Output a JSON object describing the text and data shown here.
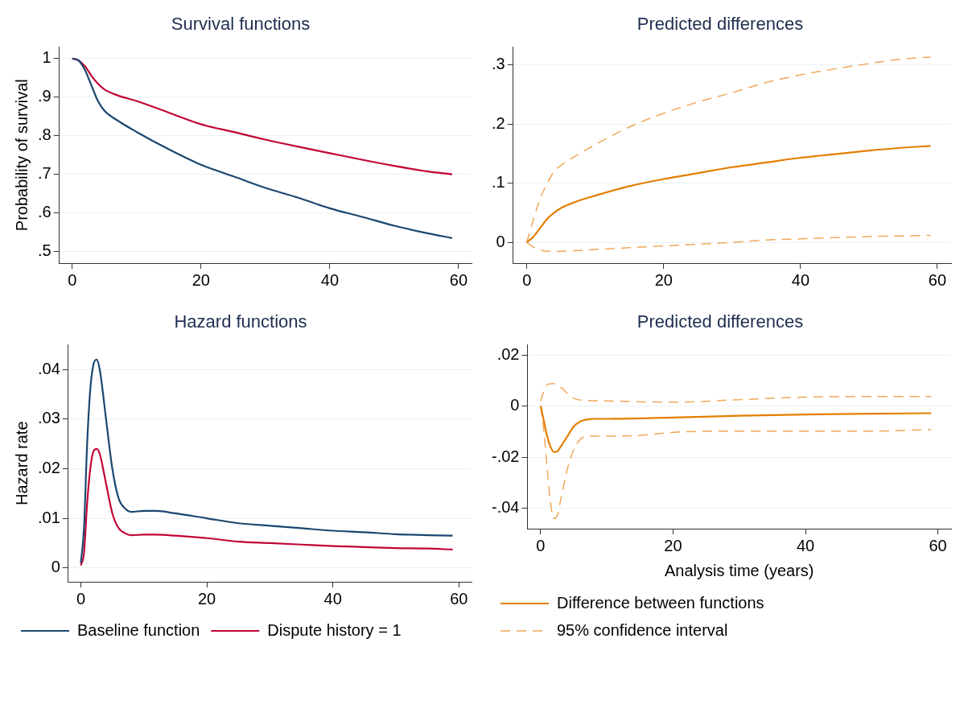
{
  "chart_data": [
    {
      "type": "line",
      "title": "Survival functions",
      "ylabel": "Probability of survival",
      "xlim": [
        -2,
        62
      ],
      "xticks": [
        0,
        20,
        40,
        60
      ],
      "ylim": [
        0.47,
        1.03
      ],
      "yticks": [
        {
          "value": 0.5,
          "label": ".5"
        },
        {
          "value": 0.6,
          "label": ".6"
        },
        {
          "value": 0.7,
          "label": ".7"
        },
        {
          "value": 0.8,
          "label": ".8"
        },
        {
          "value": 0.9,
          "label": ".9"
        },
        {
          "value": 1,
          "label": "1"
        }
      ],
      "grid": "y",
      "legend": false,
      "marker": "none",
      "series": [
        {
          "color": "#1a476f",
          "x": [
            0,
            1,
            2,
            3,
            4,
            5,
            7,
            10,
            15,
            20,
            25,
            30,
            35,
            40,
            45,
            50,
            55,
            59
          ],
          "values": [
            1,
            0.995,
            0.97,
            0.93,
            0.89,
            0.865,
            0.84,
            0.81,
            0.765,
            0.725,
            0.695,
            0.665,
            0.64,
            0.612,
            0.59,
            0.567,
            0.548,
            0.535
          ]
        },
        {
          "color": "#c10534",
          "x": [
            0,
            1,
            2,
            3,
            4,
            5,
            7,
            10,
            15,
            20,
            25,
            30,
            35,
            40,
            45,
            50,
            55,
            59
          ],
          "values": [
            1,
            0.995,
            0.98,
            0.955,
            0.935,
            0.92,
            0.905,
            0.89,
            0.86,
            0.83,
            0.81,
            0.79,
            0.772,
            0.755,
            0.738,
            0.722,
            0.708,
            0.7
          ]
        }
      ]
    },
    {
      "type": "line",
      "title": "Predicted differences",
      "xlim": [
        -2,
        62
      ],
      "xticks": [
        0,
        20,
        40,
        60
      ],
      "ylim": [
        -0.035,
        0.33
      ],
      "yticks": [
        {
          "value": 0,
          "label": "0"
        },
        {
          "value": 0.1,
          "label": ".1"
        },
        {
          "value": 0.2,
          "label": ".2"
        },
        {
          "value": 0.3,
          "label": ".3"
        }
      ],
      "grid": "y",
      "legend": false,
      "marker": "none",
      "series": [
        {
          "color": "#e37e00",
          "line_style": "solid",
          "x": [
            0,
            1,
            2,
            3,
            4,
            5,
            7,
            10,
            15,
            20,
            25,
            30,
            35,
            40,
            45,
            50,
            55,
            59
          ],
          "values": [
            0,
            0.01,
            0.025,
            0.04,
            0.05,
            0.058,
            0.068,
            0.079,
            0.095,
            0.107,
            0.117,
            0.127,
            0.135,
            0.143,
            0.149,
            0.155,
            0.16,
            0.163
          ]
        },
        {
          "color": "#f0a85a",
          "line_style": "dashed",
          "x": [
            0,
            1,
            2,
            3,
            4,
            5,
            7,
            10,
            15,
            20,
            25,
            30,
            35,
            40,
            45,
            50,
            55,
            59
          ],
          "values": [
            0,
            0.04,
            0.075,
            0.1,
            0.12,
            0.13,
            0.145,
            0.165,
            0.195,
            0.218,
            0.237,
            0.253,
            0.27,
            0.283,
            0.293,
            0.302,
            0.31,
            0.313
          ]
        },
        {
          "color": "#f0a85a",
          "line_style": "dashed",
          "x": [
            0,
            1,
            2,
            3,
            5,
            7,
            10,
            15,
            20,
            25,
            30,
            35,
            40,
            45,
            50,
            55,
            59
          ],
          "values": [
            0,
            -0.008,
            -0.013,
            -0.015,
            -0.015,
            -0.014,
            -0.012,
            -0.009,
            -0.006,
            -0.003,
            0,
            0.004,
            0.006,
            0.008,
            0.01,
            0.011,
            0.012
          ]
        }
      ]
    },
    {
      "type": "line",
      "title": "Hazard functions",
      "ylabel": "Hazard rate",
      "xlim": [
        -2,
        62
      ],
      "xticks": [
        0,
        20,
        40,
        60
      ],
      "ylim": [
        -0.0028,
        0.045
      ],
      "yticks": [
        {
          "value": 0,
          "label": "0"
        },
        {
          "value": 0.01,
          "label": ".01"
        },
        {
          "value": 0.02,
          "label": ".02"
        },
        {
          "value": 0.03,
          "label": ".03"
        },
        {
          "value": 0.04,
          "label": ".04"
        }
      ],
      "grid": "y",
      "legend": "bottom",
      "marker": "none",
      "series": [
        {
          "name": "Baseline function",
          "color": "#1a476f",
          "x": [
            0,
            0.5,
            1,
            1.5,
            2,
            2.5,
            3,
            4,
            5,
            6,
            7,
            8,
            10,
            12,
            15,
            20,
            25,
            30,
            35,
            40,
            45,
            50,
            55,
            59
          ],
          "values": [
            0.001,
            0.008,
            0.025,
            0.036,
            0.041,
            0.042,
            0.04,
            0.03,
            0.02,
            0.014,
            0.012,
            0.0113,
            0.0115,
            0.0115,
            0.011,
            0.01,
            0.009,
            0.0085,
            0.008,
            0.0075,
            0.0072,
            0.0068,
            0.0066,
            0.0065
          ]
        },
        {
          "name": "Dispute history = 1",
          "color": "#c10534",
          "x": [
            0,
            0.5,
            1,
            1.5,
            2,
            2.5,
            3,
            4,
            5,
            6,
            7,
            8,
            10,
            12,
            15,
            20,
            25,
            30,
            35,
            40,
            45,
            50,
            55,
            59
          ],
          "values": [
            0.0005,
            0.003,
            0.013,
            0.02,
            0.0235,
            0.024,
            0.023,
            0.017,
            0.011,
            0.008,
            0.007,
            0.0066,
            0.0067,
            0.0067,
            0.0065,
            0.006,
            0.0053,
            0.005,
            0.0047,
            0.0044,
            0.0042,
            0.004,
            0.0039,
            0.0037
          ]
        }
      ]
    },
    {
      "type": "line",
      "title": "Predicted differences",
      "xlabel": "Analysis time (years)",
      "xlim": [
        -2,
        62
      ],
      "xticks": [
        0,
        20,
        40,
        60
      ],
      "ylim": [
        -0.048,
        0.024
      ],
      "yticks": [
        {
          "value": -0.04,
          "label": "-.04"
        },
        {
          "value": -0.02,
          "label": "-.02"
        },
        {
          "value": 0,
          "label": "0"
        },
        {
          "value": 0.02,
          "label": ".02"
        }
      ],
      "grid": "y",
      "legend": "bottom",
      "marker": "none",
      "series": [
        {
          "name": "Difference between functions",
          "color": "#e37e00",
          "line_style": "solid",
          "x": [
            0,
            0.5,
            1,
            1.5,
            2,
            2.5,
            3,
            4,
            5,
            6,
            7,
            8,
            10,
            20,
            30,
            40,
            50,
            59
          ],
          "values": [
            0,
            -0.006,
            -0.012,
            -0.016,
            -0.018,
            -0.0178,
            -0.016,
            -0.012,
            -0.008,
            -0.006,
            -0.0053,
            -0.005,
            -0.005,
            -0.0045,
            -0.0038,
            -0.0033,
            -0.003,
            -0.0028
          ]
        },
        {
          "name": "95% confidence interval",
          "color": "#f0a85a",
          "line_style": "dashed",
          "x": [
            0,
            0.5,
            1,
            2,
            3,
            4,
            5,
            7,
            10,
            20,
            30,
            40,
            50,
            59
          ],
          "values": [
            0.002,
            0.006,
            0.0085,
            0.0088,
            0.0075,
            0.005,
            0.003,
            0.0022,
            0.002,
            0.0015,
            0.0025,
            0.0035,
            0.0037,
            0.0037
          ]
        },
        {
          "color": "#f0a85a",
          "line_style": "dashed",
          "x": [
            0,
            0.5,
            1,
            1.5,
            2,
            2.5,
            3,
            4,
            5,
            6,
            7,
            10,
            15,
            20,
            30,
            40,
            50,
            59
          ],
          "values": [
            0,
            -0.01,
            -0.025,
            -0.038,
            -0.044,
            -0.043,
            -0.037,
            -0.025,
            -0.017,
            -0.013,
            -0.0118,
            -0.0118,
            -0.0115,
            -0.0103,
            -0.0098,
            -0.0098,
            -0.0098,
            -0.0092
          ]
        }
      ]
    }
  ]
}
